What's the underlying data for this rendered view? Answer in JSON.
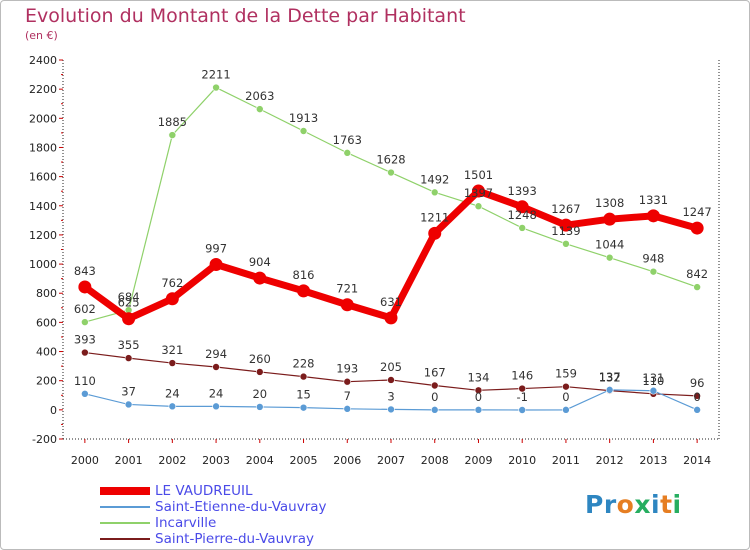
{
  "title": "Evolution du Montant de la Dette par Habitant",
  "subtitle": "(en €)",
  "logo": {
    "text": "Proxiti",
    "letters": [
      {
        "ch": "P",
        "color": "#2e86c1"
      },
      {
        "ch": "r",
        "color": "#2e86c1"
      },
      {
        "ch": "o",
        "color": "#e67e22"
      },
      {
        "ch": "x",
        "color": "#27ae60"
      },
      {
        "ch": "i",
        "color": "#2e86c1"
      },
      {
        "ch": "t",
        "color": "#e67e22"
      },
      {
        "ch": "i",
        "color": "#27ae60"
      }
    ]
  },
  "chart_data": {
    "type": "line",
    "x": [
      "2000",
      "2001",
      "2002",
      "2003",
      "2004",
      "2005",
      "2006",
      "2007",
      "2008",
      "2009",
      "2010",
      "2011",
      "2012",
      "2013",
      "2014"
    ],
    "ylim": [
      -200,
      2400
    ],
    "yticks": [
      -200,
      0,
      200,
      400,
      600,
      800,
      1000,
      1200,
      1400,
      1600,
      1800,
      2000,
      2200,
      2400
    ],
    "grid": false,
    "legend": "bottom-left",
    "series": [
      {
        "name": "Saint-Pierre-du-Vauvray",
        "color": "#7b1c1c",
        "width": 1.2,
        "marker": 3.5,
        "values": [
          393,
          355,
          321,
          294,
          260,
          228,
          193,
          205,
          167,
          134,
          146,
          159,
          132,
          110,
          96
        ]
      },
      {
        "name": "Saint-Etienne-du-Vauvray",
        "color": "#5b9bd5",
        "width": 1.2,
        "marker": 3.5,
        "values": [
          110,
          37,
          24,
          24,
          20,
          15,
          7,
          3,
          0,
          0,
          -1,
          0,
          137,
          131,
          0
        ]
      },
      {
        "name": "Incarville",
        "color": "#8fd16a",
        "width": 1.2,
        "marker": 3.5,
        "values": [
          602,
          684,
          1885,
          2211,
          2063,
          1913,
          1763,
          1628,
          1492,
          1397,
          1248,
          1139,
          1044,
          948,
          842
        ]
      },
      {
        "name": "LE VAUDREUIL",
        "color": "#ee0000",
        "width": 7,
        "marker": 6.5,
        "values": [
          843,
          625,
          762,
          997,
          904,
          816,
          721,
          631,
          1211,
          1501,
          1393,
          1267,
          1308,
          1331,
          1247
        ]
      }
    ],
    "legend_order": [
      "LE VAUDREUIL",
      "Saint-Etienne-du-Vauvray",
      "Incarville",
      "Saint-Pierre-du-Vauvray"
    ]
  }
}
